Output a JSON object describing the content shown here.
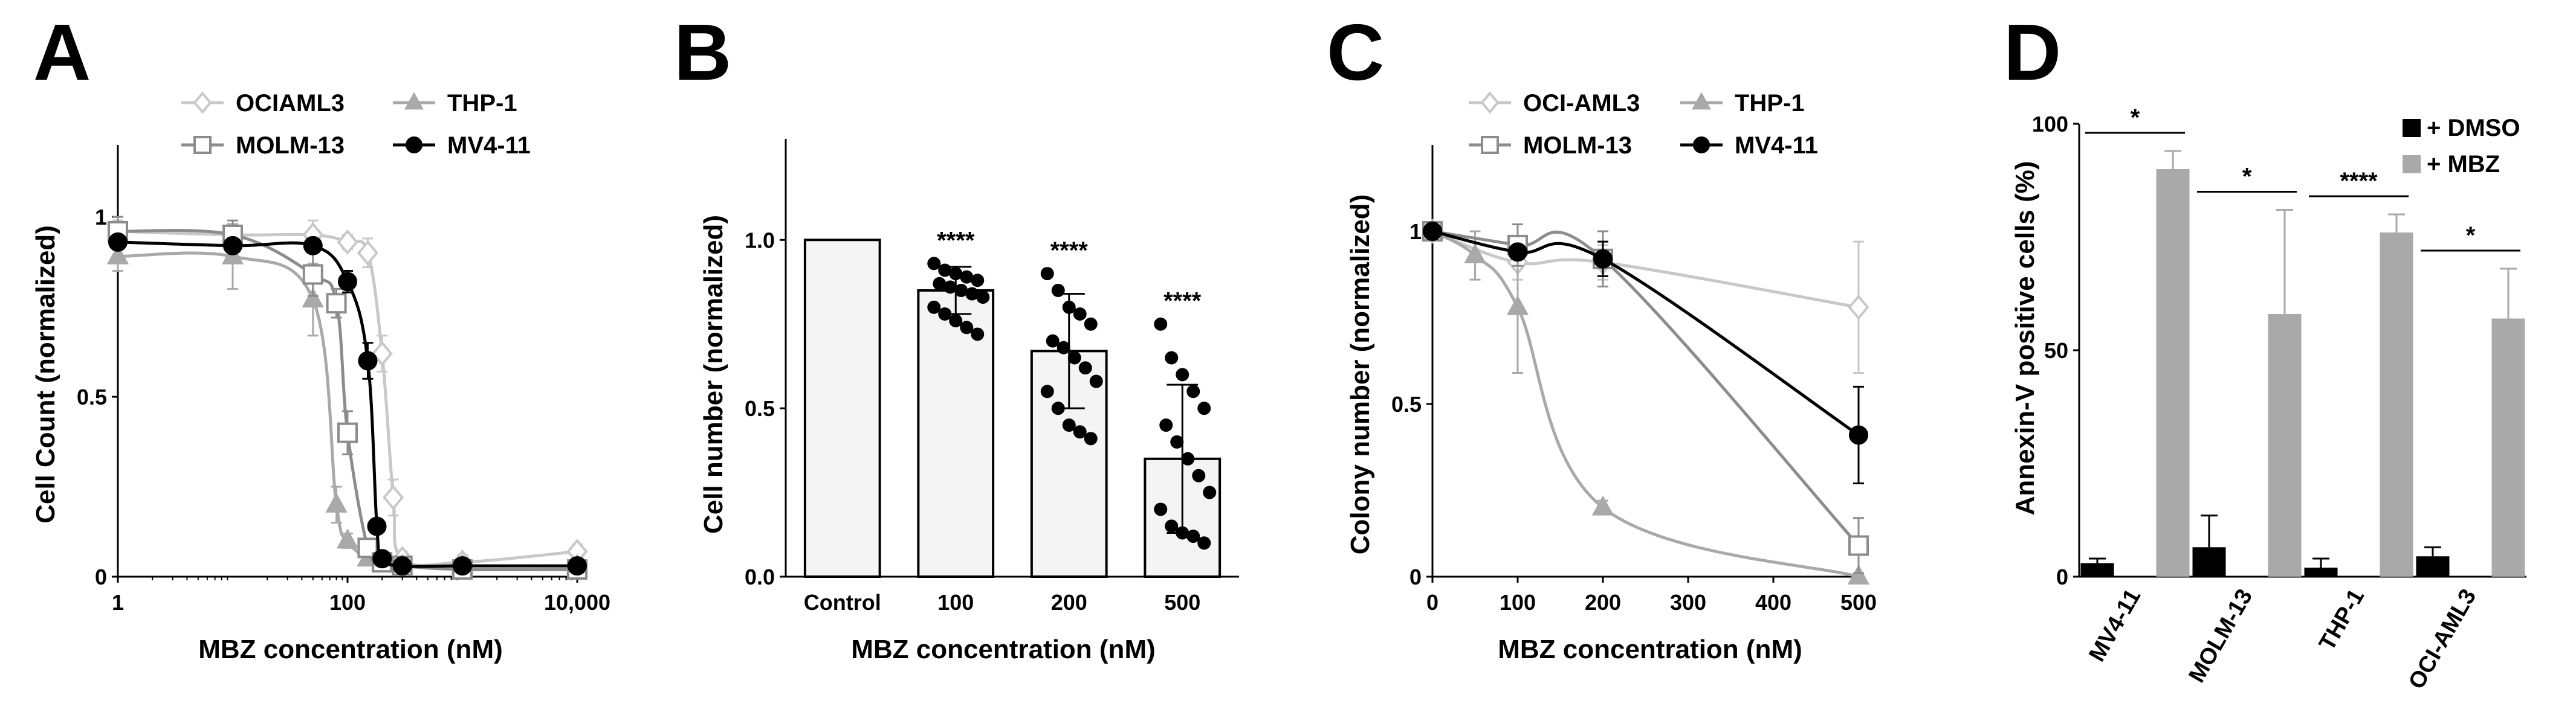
{
  "figure": {
    "panel_labels": [
      "A",
      "B",
      "C",
      "D"
    ]
  },
  "chart_data": [
    {
      "panel": "A",
      "type": "line",
      "xscale": "log",
      "xlabel": "MBZ concentration (nM)",
      "ylabel": "Cell Count (normalized)",
      "xlim": [
        1,
        10000
      ],
      "ylim": [
        0,
        1.2
      ],
      "xticks": [
        1,
        100,
        10000
      ],
      "xtick_labels": [
        "1",
        "100",
        "10,000"
      ],
      "yticks": [
        0,
        0.5,
        1
      ],
      "ytick_labels": [
        "0",
        "0.5",
        "1"
      ],
      "legend_position": "top",
      "series": [
        {
          "name": "OCIAML3",
          "color": "#c8c8c8",
          "marker": "diamond-open",
          "x": [
            1,
            10,
            50,
            100,
            150,
            200,
            250,
            300,
            1000,
            10000
          ],
          "y": [
            0.96,
            0.95,
            0.95,
            0.93,
            0.9,
            0.62,
            0.22,
            0.05,
            0.04,
            0.07
          ],
          "err": [
            0.03,
            0.03,
            0.04,
            0.02,
            0.04,
            0.05,
            0.05,
            0.02,
            0.02,
            0.02
          ]
        },
        {
          "name": "THP-1",
          "color": "#a9a9a9",
          "marker": "triangle",
          "x": [
            1,
            10,
            50,
            80,
            100,
            150,
            200,
            300,
            1000,
            10000
          ],
          "y": [
            0.89,
            0.89,
            0.77,
            0.2,
            0.1,
            0.05,
            0.04,
            0.03,
            0.03,
            0.03
          ],
          "err": [
            0.04,
            0.09,
            0.1,
            0.05,
            0.02,
            0.01,
            0.01,
            0.01,
            0.01,
            0.01
          ]
        },
        {
          "name": "MOLM-13",
          "color": "#8c8c8c",
          "marker": "square-open",
          "x": [
            1,
            10,
            50,
            80,
            100,
            150,
            200,
            300,
            1000,
            10000
          ],
          "y": [
            0.96,
            0.95,
            0.84,
            0.76,
            0.4,
            0.08,
            0.04,
            0.03,
            0.02,
            0.02
          ],
          "err": [
            0.04,
            0.04,
            0.06,
            0.04,
            0.06,
            0.02,
            0.01,
            0.01,
            0.01,
            0.01
          ]
        },
        {
          "name": "MV4-11",
          "color": "#000000",
          "marker": "circle",
          "x": [
            1,
            10,
            50,
            100,
            150,
            180,
            200,
            300,
            1000,
            10000
          ],
          "y": [
            0.93,
            0.92,
            0.92,
            0.82,
            0.6,
            0.14,
            0.05,
            0.03,
            0.03,
            0.03
          ],
          "err": [
            0.02,
            0.02,
            0.02,
            0.03,
            0.05,
            0.02,
            0.01,
            0.01,
            0.01,
            0.01
          ]
        }
      ]
    },
    {
      "panel": "B",
      "type": "bar",
      "xlabel": "MBZ concentration (nM)",
      "ylabel": "Cell number (normalized)",
      "ylim": [
        0,
        1.3
      ],
      "yticks": [
        0,
        0.5,
        1
      ],
      "ytick_labels": [
        "0.0",
        "0.5",
        "1.0"
      ],
      "categories": [
        "Control",
        "100",
        "200",
        "500"
      ],
      "values": [
        1.0,
        0.85,
        0.67,
        0.35
      ],
      "err": [
        0,
        0.07,
        0.17,
        0.22
      ],
      "significance": [
        "",
        "****",
        "****",
        "****"
      ],
      "points": [
        [],
        [
          0.93,
          0.91,
          0.9,
          0.89,
          0.88,
          0.87,
          0.86,
          0.85,
          0.84,
          0.83,
          0.8,
          0.78,
          0.76,
          0.74,
          0.72
        ],
        [
          0.9,
          0.85,
          0.8,
          0.78,
          0.75,
          0.7,
          0.68,
          0.65,
          0.62,
          0.58,
          0.55,
          0.5,
          0.45,
          0.43,
          0.41
        ],
        [
          0.75,
          0.65,
          0.6,
          0.55,
          0.5,
          0.45,
          0.4,
          0.35,
          0.3,
          0.25,
          0.2,
          0.15,
          0.13,
          0.12,
          0.1
        ]
      ]
    },
    {
      "panel": "C",
      "type": "line",
      "xlabel": "MBZ concentration (nM)",
      "ylabel": "Colony number (normalized)",
      "xlim": [
        0,
        500
      ],
      "ylim": [
        0,
        1.25
      ],
      "xticks": [
        0,
        100,
        200,
        300,
        400,
        500
      ],
      "xtick_labels": [
        "0",
        "100",
        "200",
        "300",
        "400",
        "500"
      ],
      "yticks": [
        0,
        0.5,
        1
      ],
      "ytick_labels": [
        "0",
        "0.5",
        "1"
      ],
      "legend_position": "top",
      "series": [
        {
          "name": "OCI-AML3",
          "color": "#c8c8c8",
          "marker": "diamond-open",
          "x": [
            0,
            100,
            200,
            500
          ],
          "y": [
            1.0,
            0.91,
            0.91,
            0.78
          ],
          "err": [
            0,
            0.05,
            0.05,
            0.19
          ]
        },
        {
          "name": "THP-1",
          "color": "#a9a9a9",
          "marker": "triangle",
          "x": [
            0,
            50,
            100,
            200,
            500
          ],
          "y": [
            1.0,
            0.93,
            0.78,
            0.2,
            0.0
          ],
          "err": [
            0,
            0.07,
            0.19,
            0.02,
            0.01
          ]
        },
        {
          "name": "MOLM-13",
          "color": "#8c8c8c",
          "marker": "square-open",
          "x": [
            0,
            100,
            200,
            500
          ],
          "y": [
            1.0,
            0.96,
            0.92,
            0.09
          ],
          "err": [
            0,
            0.06,
            0.08,
            0.08
          ]
        },
        {
          "name": "MV4-11",
          "color": "#000000",
          "marker": "circle",
          "x": [
            0,
            100,
            200,
            500
          ],
          "y": [
            1.0,
            0.94,
            0.92,
            0.41
          ],
          "err": [
            0,
            0.02,
            0.05,
            0.14
          ]
        }
      ]
    },
    {
      "panel": "D",
      "type": "bar",
      "ylabel": "Annexin-V positive cells (%)",
      "ylim": [
        0,
        100
      ],
      "yticks": [
        0,
        50,
        100
      ],
      "ytick_labels": [
        "0",
        "50",
        "100"
      ],
      "categories": [
        "MV4-11",
        "MOLM-13",
        "THP-1",
        "OCI-AML3"
      ],
      "legend_position": "top-right",
      "series": [
        {
          "name": "+ DMSO",
          "color": "#000000",
          "values": [
            3,
            6.5,
            2,
            4.5
          ],
          "err": [
            1,
            7,
            2,
            2
          ]
        },
        {
          "name": "+ MBZ",
          "color": "#a9a9a9",
          "values": [
            90,
            58,
            76,
            57
          ],
          "err": [
            4,
            23,
            4,
            11
          ]
        }
      ],
      "significance": [
        "*",
        "*",
        "****",
        "*"
      ]
    }
  ]
}
